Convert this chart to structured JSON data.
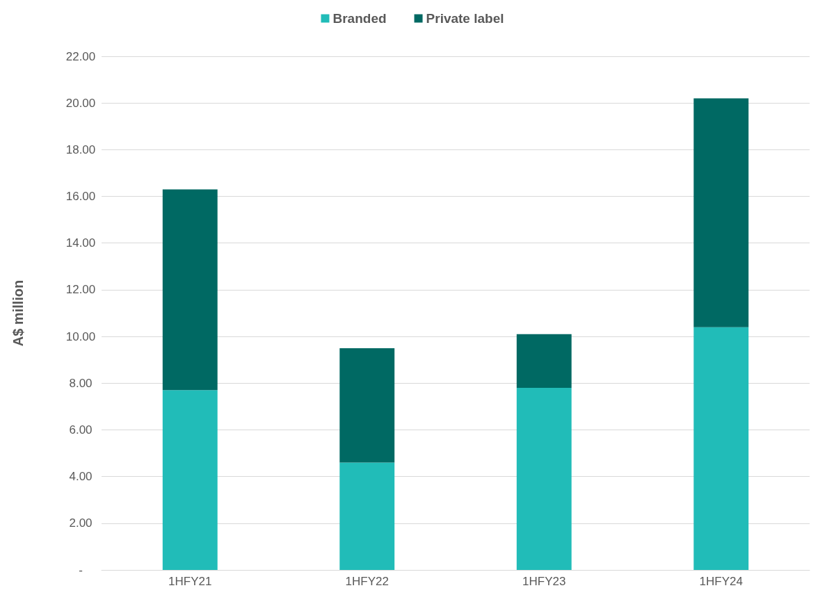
{
  "chart_data": {
    "type": "bar",
    "stacked": true,
    "ylabel": "A$ million",
    "categories": [
      "1HFY21",
      "1HFY22",
      "1HFY23",
      "1HFY24"
    ],
    "series": [
      {
        "name": "Branded",
        "color": "#21bcb8",
        "values": [
          7.7,
          4.6,
          7.8,
          10.4
        ]
      },
      {
        "name": "Private label",
        "color": "#006963",
        "values": [
          8.6,
          4.9,
          2.3,
          9.8
        ]
      }
    ],
    "ylim": [
      0,
      22
    ],
    "yticks": [
      {
        "value": 0,
        "label": "-"
      },
      {
        "value": 2,
        "label": "2.00"
      },
      {
        "value": 4,
        "label": "4.00"
      },
      {
        "value": 6,
        "label": "6.00"
      },
      {
        "value": 8,
        "label": "8.00"
      },
      {
        "value": 10,
        "label": "10.00"
      },
      {
        "value": 12,
        "label": "12.00"
      },
      {
        "value": 14,
        "label": "14.00"
      },
      {
        "value": 16,
        "label": "16.00"
      },
      {
        "value": 18,
        "label": "18.00"
      },
      {
        "value": 20,
        "label": "20.00"
      },
      {
        "value": 22,
        "label": "22.00"
      }
    ],
    "grid": "y",
    "legend": "top"
  }
}
